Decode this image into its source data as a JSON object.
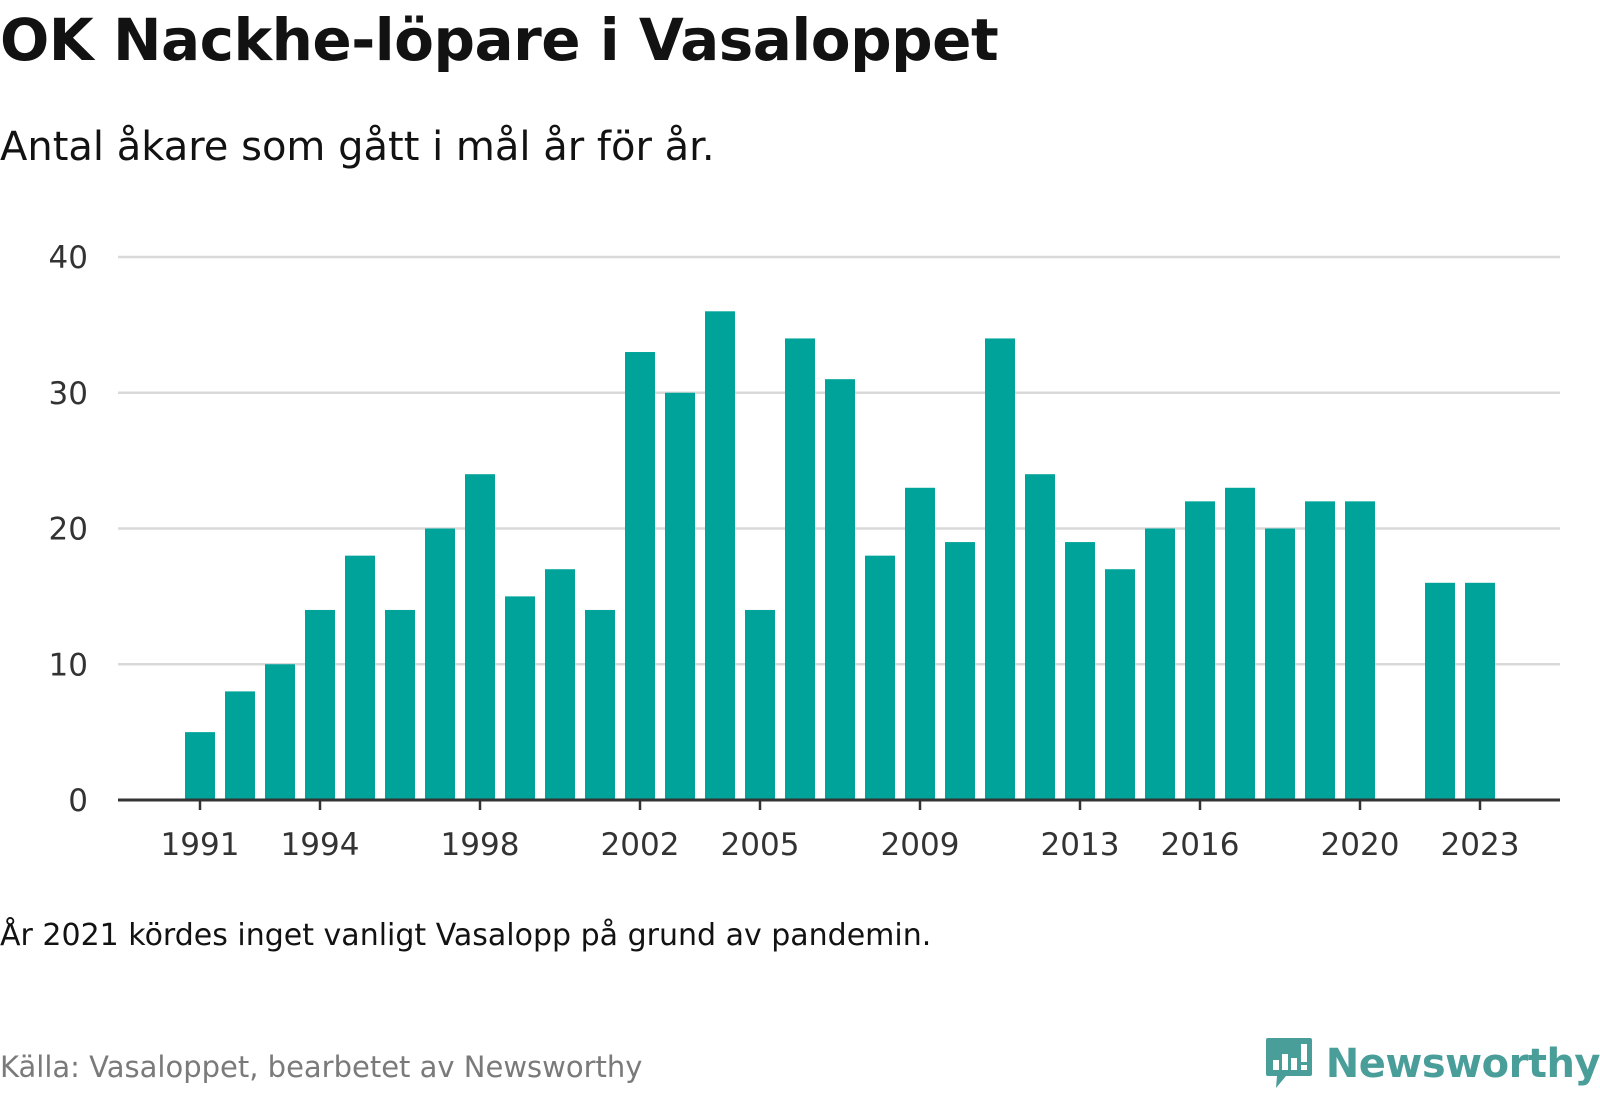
{
  "title": "OK Nackhe-löpare i Vasaloppet",
  "subtitle": "Antal åkare som gått i mål år för år.",
  "note": "År 2021 kördes inget vanligt Vasalopp på grund av pandemin.",
  "source": "Källa: Vasaloppet, bearbetet av Newsworthy",
  "logo_text": "Newsworthy",
  "colors": {
    "bar": "#00a39a",
    "grid": "#d9d9d9",
    "axis": "#333333",
    "logo": "#4a9e99"
  },
  "chart_data": {
    "type": "bar",
    "title": "OK Nackhe-löpare i Vasaloppet",
    "subtitle": "Antal åkare som gått i mål år för år.",
    "xlabel": "",
    "ylabel": "",
    "ylim": [
      0,
      40
    ],
    "yticks": [
      0,
      10,
      20,
      30,
      40
    ],
    "xtick_labels": [
      1991,
      1994,
      1998,
      2002,
      2005,
      2009,
      2013,
      2016,
      2020,
      2023
    ],
    "categories": [
      1991,
      1992,
      1993,
      1994,
      1995,
      1996,
      1997,
      1998,
      1999,
      2000,
      2001,
      2002,
      2003,
      2004,
      2005,
      2006,
      2007,
      2008,
      2009,
      2010,
      2011,
      2012,
      2013,
      2014,
      2015,
      2016,
      2017,
      2018,
      2019,
      2020,
      2021,
      2022,
      2023
    ],
    "values": [
      5,
      8,
      10,
      14,
      18,
      14,
      20,
      24,
      15,
      17,
      14,
      33,
      30,
      36,
      14,
      34,
      31,
      18,
      23,
      19,
      34,
      24,
      19,
      17,
      20,
      22,
      23,
      20,
      22,
      22,
      null,
      16,
      16
    ],
    "grid": true,
    "legend": "none"
  }
}
